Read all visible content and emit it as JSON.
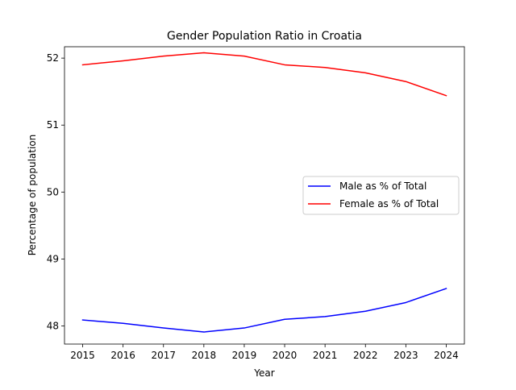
{
  "chart_data": {
    "type": "line",
    "title": "Gender Population Ratio in Croatia",
    "xlabel": "Year",
    "ylabel": "Percentage of population",
    "x": [
      2015,
      2016,
      2017,
      2018,
      2019,
      2020,
      2021,
      2022,
      2023,
      2024
    ],
    "xlim": [
      2014.55,
      2024.45
    ],
    "ylim": [
      47.73,
      52.17
    ],
    "xticks": [
      2015,
      2016,
      2017,
      2018,
      2019,
      2020,
      2021,
      2022,
      2023,
      2024
    ],
    "yticks": [
      48,
      49,
      50,
      51,
      52
    ],
    "grid": false,
    "legend_position": "center-right",
    "series": [
      {
        "name": "Male as % of Total",
        "color": "#0000ff",
        "values": [
          48.09,
          48.04,
          47.97,
          47.91,
          47.97,
          48.1,
          48.14,
          48.22,
          48.35,
          48.56
        ]
      },
      {
        "name": "Female as % of Total",
        "color": "#ff0000",
        "values": [
          51.9,
          51.96,
          52.03,
          52.08,
          52.03,
          51.9,
          51.86,
          51.78,
          51.65,
          51.44
        ]
      }
    ]
  }
}
